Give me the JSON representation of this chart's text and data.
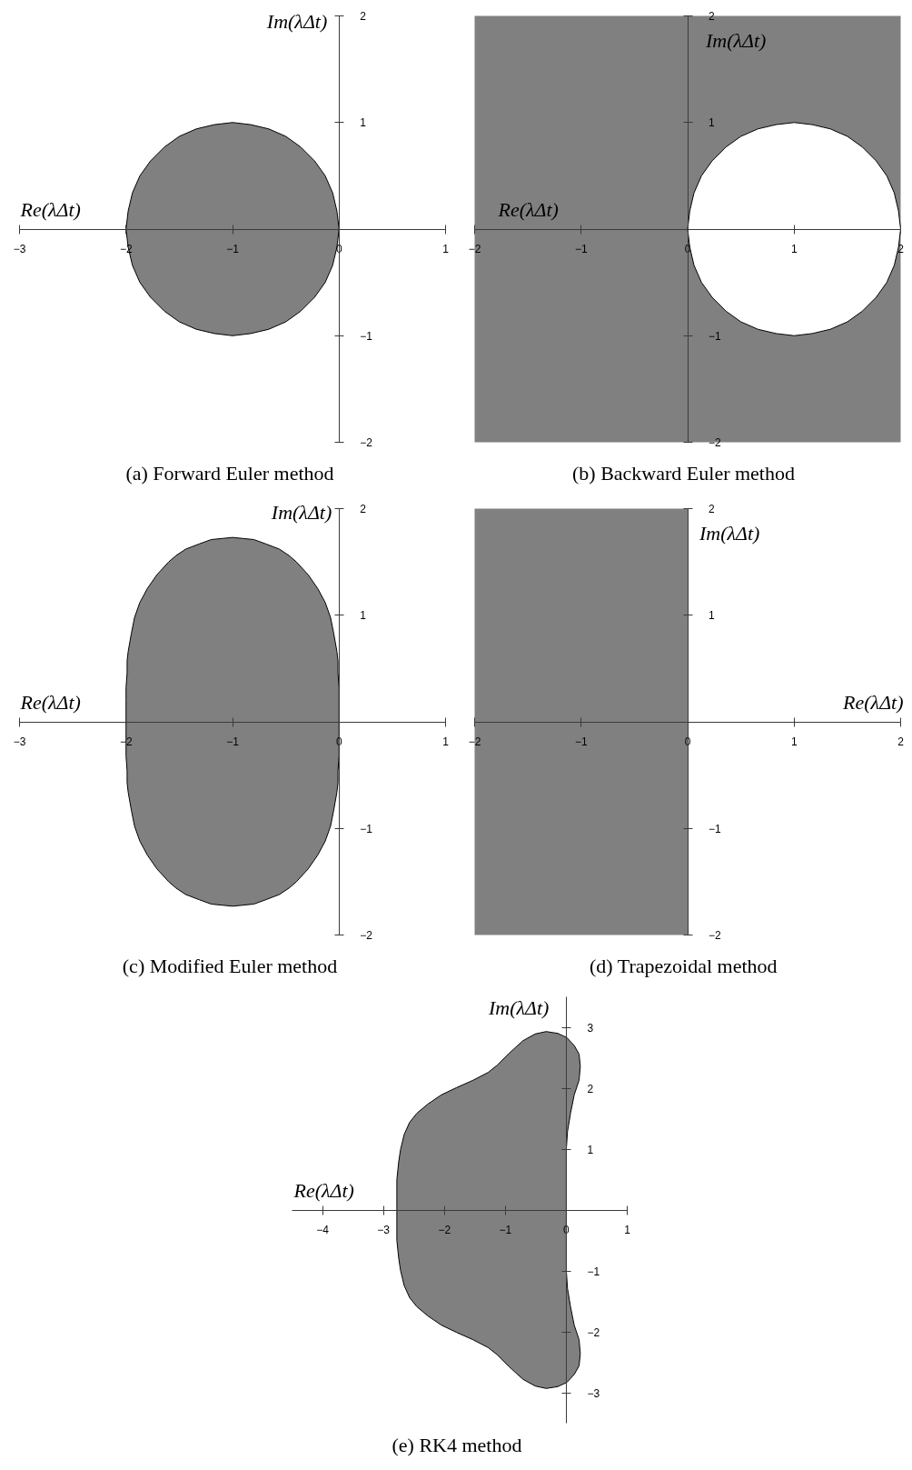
{
  "chart_data": [
    {
      "type": "area",
      "title": "(a) Forward Euler method",
      "xlabel": "Re(λΔt)",
      "ylabel": "Im(λΔt)",
      "xlim": [
        -3,
        1
      ],
      "ylim": [
        -2,
        2
      ],
      "xticks": [
        -3,
        -2,
        -1,
        0,
        1
      ],
      "yticks": [
        -2,
        -1,
        1,
        2
      ],
      "series": [
        {
          "color": "#808080",
          "x": [
            0,
            -0.02,
            -0.06,
            -0.13,
            -0.23,
            -0.36,
            -0.5,
            -0.66,
            -0.83,
            -1,
            -1.17,
            -1.34,
            -1.5,
            -1.64,
            -1.77,
            -1.87,
            -1.94,
            -1.98,
            -2,
            -1.98,
            -1.94,
            -1.87,
            -1.77,
            -1.64,
            -1.5,
            -1.34,
            -1.17,
            -1,
            -0.83,
            -0.66,
            -0.5,
            -0.36,
            -0.23,
            -0.13,
            -0.06,
            -0.02
          ],
          "values": [
            0,
            0.17,
            0.34,
            0.5,
            0.64,
            0.77,
            0.87,
            0.94,
            0.98,
            1,
            0.98,
            0.94,
            0.87,
            0.77,
            0.64,
            0.5,
            0.34,
            0.17,
            0,
            -0.17,
            -0.34,
            -0.5,
            -0.64,
            -0.77,
            -0.87,
            -0.94,
            -0.98,
            -1,
            -0.98,
            -0.94,
            -0.87,
            -0.77,
            -0.64,
            -0.5,
            -0.34,
            -0.17
          ]
        }
      ]
    },
    {
      "type": "area",
      "title": "(b) Backward Euler method",
      "xlabel": "Re(λΔt)",
      "ylabel": "Im(λΔt)",
      "xlim": [
        -2,
        2
      ],
      "ylim": [
        -2,
        2
      ],
      "xticks": [
        -2,
        -1,
        0,
        1,
        2
      ],
      "yticks": [
        -2,
        -1,
        1,
        2
      ],
      "bands": [
        {
          "axis": "x",
          "from": -2,
          "to": 2,
          "color": "#808080"
        }
      ],
      "series": [
        {
          "color": "#ffffff",
          "x": [
            2,
            1.98,
            1.94,
            1.87,
            1.77,
            1.64,
            1.5,
            1.34,
            1.17,
            1,
            0.83,
            0.66,
            0.5,
            0.36,
            0.23,
            0.13,
            0.06,
            0.02,
            0,
            0.02,
            0.06,
            0.13,
            0.23,
            0.36,
            0.5,
            0.66,
            0.83,
            1,
            1.17,
            1.34,
            1.5,
            1.64,
            1.77,
            1.87,
            1.94,
            1.98
          ],
          "values": [
            0,
            0.17,
            0.34,
            0.5,
            0.64,
            0.77,
            0.87,
            0.94,
            0.98,
            1,
            0.98,
            0.94,
            0.87,
            0.77,
            0.64,
            0.5,
            0.34,
            0.17,
            0,
            -0.17,
            -0.34,
            -0.5,
            -0.64,
            -0.77,
            -0.87,
            -0.94,
            -0.98,
            -1,
            -0.98,
            -0.94,
            -0.87,
            -0.77,
            -0.64,
            -0.5,
            -0.34,
            -0.17
          ]
        }
      ]
    },
    {
      "type": "area",
      "title": "(c) Modified Euler method",
      "xlabel": "Re(λΔt)",
      "ylabel": "Im(λΔt)",
      "xlim": [
        -3,
        1
      ],
      "ylim": [
        -2,
        2
      ],
      "xticks": [
        -3,
        -2,
        -1,
        0,
        1
      ],
      "yticks": [
        -2,
        -1,
        1,
        2
      ],
      "series": [
        {
          "color": "#808080",
          "x": [
            0,
            0,
            0,
            -0.01,
            -0.01,
            -0.02,
            -0.05,
            -0.08,
            -0.13,
            -0.2,
            -0.29,
            -0.4,
            -0.47,
            -0.56,
            -0.69,
            -0.8,
            -1,
            -1.2,
            -1.31,
            -1.44,
            -1.53,
            -1.6,
            -1.71,
            -1.8,
            -1.87,
            -1.92,
            -1.95,
            -1.98,
            -1.99,
            -1.99,
            -2,
            -2,
            -2,
            -2,
            -2,
            -1.99,
            -1.99,
            -1.98,
            -1.95,
            -1.92,
            -1.87,
            -1.8,
            -1.71,
            -1.6,
            -1.53,
            -1.44,
            -1.31,
            -1.2,
            -1,
            -0.8,
            -0.69,
            -0.56,
            -0.47,
            -0.4,
            -0.29,
            -0.2,
            -0.13,
            -0.08,
            -0.05,
            -0.02,
            -0.01,
            -0.01,
            0,
            0
          ],
          "values": [
            0,
            0.2,
            0.32,
            0.46,
            0.57,
            0.66,
            0.83,
            0.98,
            1.12,
            1.25,
            1.38,
            1.5,
            1.56,
            1.62,
            1.67,
            1.71,
            1.73,
            1.71,
            1.67,
            1.62,
            1.56,
            1.5,
            1.38,
            1.25,
            1.12,
            0.98,
            0.83,
            0.66,
            0.57,
            0.46,
            0.32,
            0.2,
            0,
            -0.2,
            -0.32,
            -0.46,
            -0.57,
            -0.66,
            -0.83,
            -0.98,
            -1.12,
            -1.25,
            -1.38,
            -1.5,
            -1.56,
            -1.62,
            -1.67,
            -1.71,
            -1.73,
            -1.71,
            -1.67,
            -1.62,
            -1.56,
            -1.5,
            -1.38,
            -1.25,
            -1.12,
            -0.98,
            -0.83,
            -0.66,
            -0.57,
            -0.46,
            -0.32,
            -0.2
          ]
        }
      ]
    },
    {
      "type": "area",
      "title": "(d) Trapezoidal method",
      "xlabel": "Re(λΔt)",
      "ylabel": "Im(λΔt)",
      "xlim": [
        -2,
        2
      ],
      "ylim": [
        -2,
        2
      ],
      "xticks": [
        -2,
        -1,
        0,
        1,
        2
      ],
      "yticks": [
        -2,
        -1,
        1,
        2
      ],
      "bands": [
        {
          "axis": "x",
          "from": -2,
          "to": 0,
          "color": "#808080"
        }
      ]
    },
    {
      "type": "area",
      "title": "(e) RK4 method",
      "xlabel": "Re(λΔt)",
      "ylabel": "Im(λΔt)",
      "xlim": [
        -4.5,
        1
      ],
      "ylim": [
        -3.5,
        3.5
      ],
      "xticks": [
        -4,
        -3,
        -2,
        -1,
        0,
        1
      ],
      "yticks": [
        -3,
        -2,
        -1,
        1,
        2,
        3
      ],
      "series": [
        {
          "color": "#808080",
          "x": [
            -2.78,
            -2.78,
            -2.75,
            -2.72,
            -2.66,
            -2.57,
            -2.45,
            -2.27,
            -2.05,
            -1.8,
            -1.53,
            -1.28,
            -1.13,
            -0.93,
            -0.71,
            -0.51,
            -0.33,
            -0.14,
            0.01,
            0.13,
            0.21,
            0.23,
            0.21,
            0.13,
            0.07,
            0.02,
            0,
            0,
            0,
            0,
            0,
            0.02,
            0.07,
            0.13,
            0.21,
            0.23,
            0.21,
            0.13,
            0.01,
            -0.14,
            -0.33,
            -0.51,
            -0.71,
            -0.93,
            -1.13,
            -1.28,
            -1.53,
            -1.8,
            -2.05,
            -2.27,
            -2.45,
            -2.57,
            -2.66,
            -2.72,
            -2.75,
            -2.78
          ],
          "values": [
            0,
            0.5,
            0.79,
            0.99,
            1.24,
            1.44,
            1.59,
            1.74,
            1.89,
            2.01,
            2.13,
            2.26,
            2.38,
            2.58,
            2.78,
            2.89,
            2.93,
            2.9,
            2.83,
            2.7,
            2.56,
            2.36,
            2.13,
            1.89,
            1.59,
            1.29,
            0.99,
            0.5,
            0,
            -0.5,
            -0.99,
            -1.29,
            -1.59,
            -1.89,
            -2.13,
            -2.36,
            -2.56,
            -2.7,
            -2.83,
            -2.9,
            -2.93,
            -2.89,
            -2.78,
            -2.58,
            -2.38,
            -2.26,
            -2.13,
            -2.01,
            -1.89,
            -1.74,
            -1.59,
            -1.44,
            -1.24,
            -0.99,
            -0.79,
            -0.5
          ]
        }
      ]
    }
  ]
}
